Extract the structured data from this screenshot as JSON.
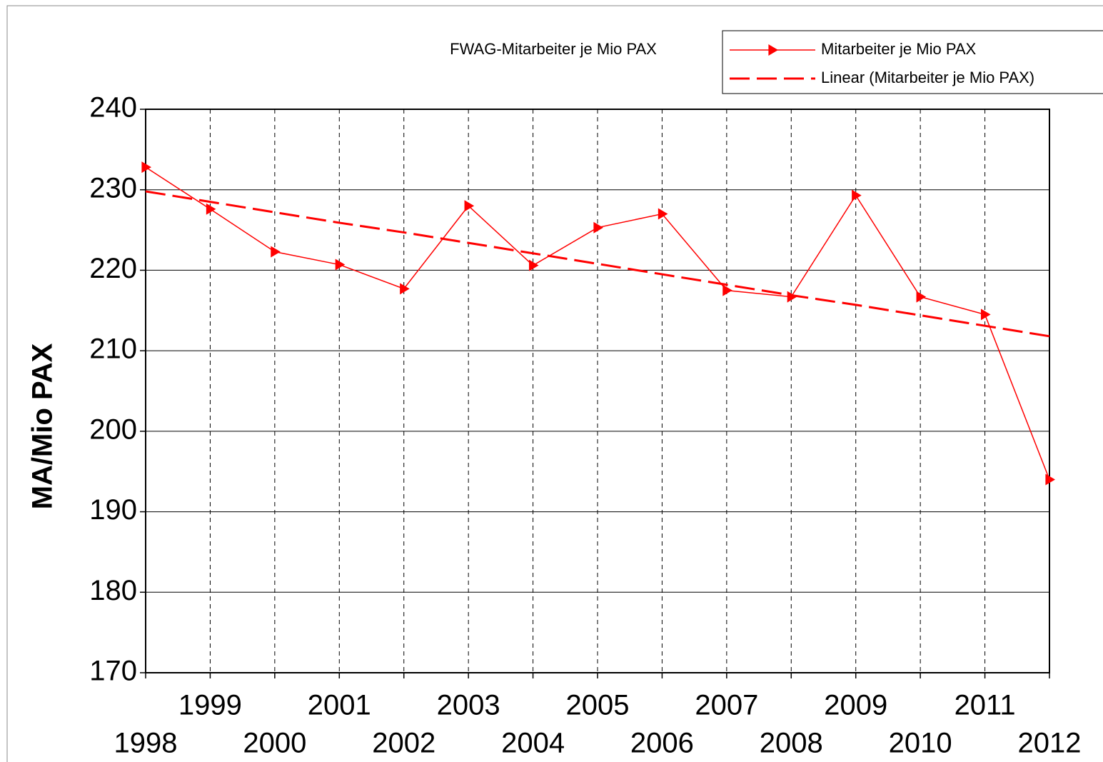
{
  "chart_data": {
    "type": "line",
    "title": "FWAG-Mitarbeiter je Mio PAX",
    "y_label": "MA/Mio PAX",
    "categories": [
      "1998",
      "1999",
      "2000",
      "2001",
      "2002",
      "2003",
      "2004",
      "2005",
      "2006",
      "2007",
      "2008",
      "2009",
      "2010",
      "2011",
      "2012"
    ],
    "series": [
      {
        "name": "Mitarbeiter  je Mio PAX",
        "color": "#ff0000",
        "marker": "triangle-right",
        "dashed": false,
        "values": [
          232.8,
          227.6,
          222.3,
          220.7,
          217.7,
          228.0,
          220.6,
          225.3,
          227.0,
          217.5,
          216.7,
          229.3,
          216.7,
          214.5,
          194.0
        ]
      },
      {
        "name": "Linear (Mitarbeiter  je Mio PAX)",
        "color": "#ff0000",
        "dashed": true,
        "values": [
          229.8,
          228.5,
          227.2,
          225.9,
          224.7,
          223.4,
          222.1,
          220.8,
          219.5,
          218.2,
          216.9,
          215.7,
          214.4,
          213.1,
          211.8
        ]
      }
    ],
    "ylim": [
      170,
      240
    ],
    "yticks": [
      170,
      180,
      190,
      200,
      210,
      220,
      230,
      240
    ],
    "grid": true,
    "legend": "top-right"
  }
}
